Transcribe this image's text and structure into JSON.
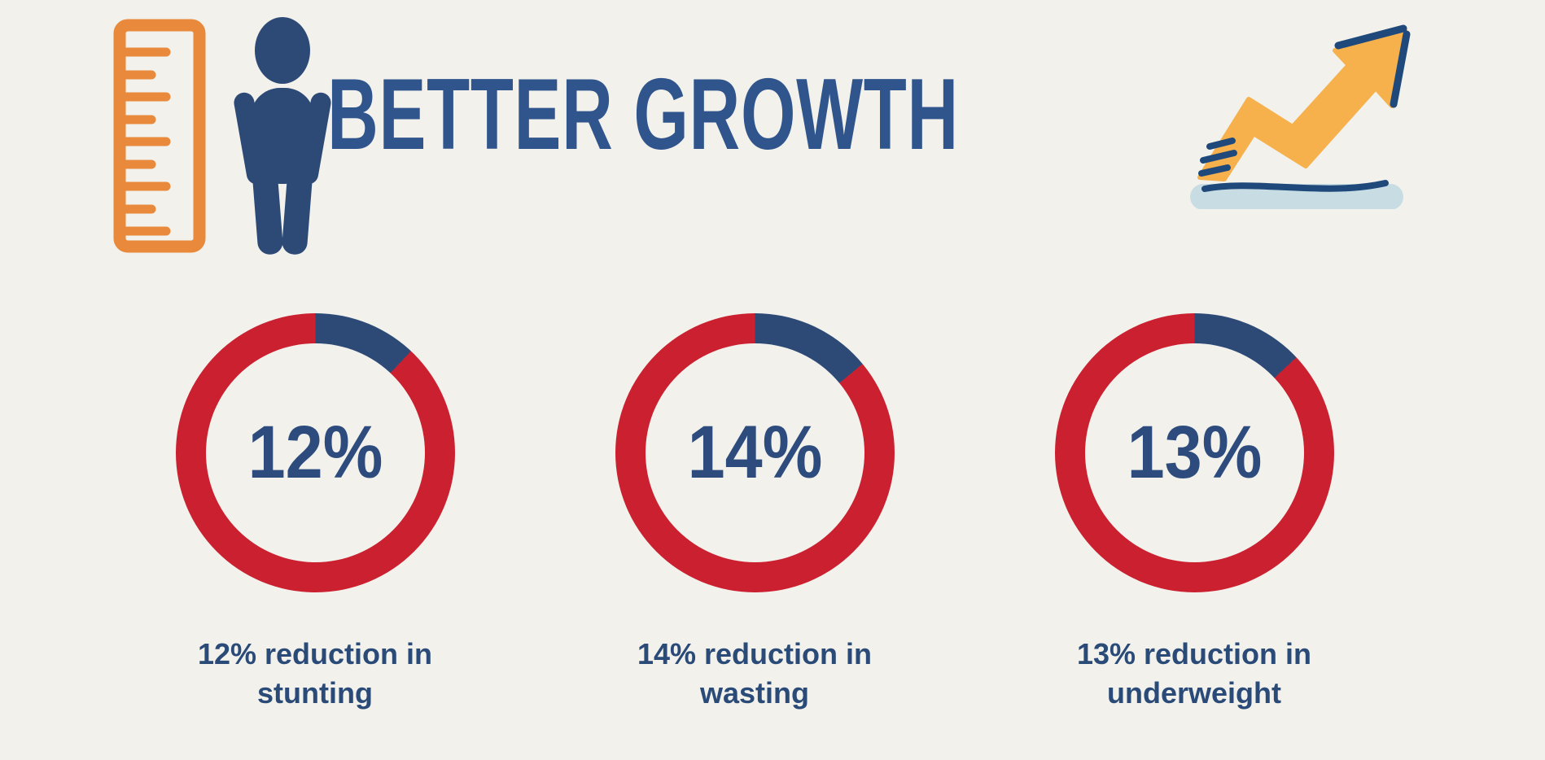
{
  "header": {
    "title": "BETTER GROWTH",
    "title_color": "#30548c",
    "left_icon": "ruler-and-person",
    "right_icon": "rising-growth-arrow"
  },
  "colors": {
    "background": "#f2f1ec",
    "red": "#cb2030",
    "navy": "#2d4a77",
    "orange": "#e8893c",
    "yellow": "#f6b04c",
    "light_blue": "#c8dde3",
    "arrow_accent_navy": "#1f497a",
    "caption_text": "#2a4a78"
  },
  "chart_data": {
    "type": "pie",
    "subtype": "donut",
    "title": "BETTER GROWTH",
    "units": "%",
    "start_angle": "12 o'clock",
    "direction": "clockwise",
    "legend": "none",
    "charts": [
      {
        "name": "stunting",
        "value": 12,
        "value_label": "12%",
        "caption_lines": [
          "12% reduction in",
          "stunting"
        ],
        "slices": [
          {
            "label": "reduction",
            "value": 12,
            "color": "#2d4a77"
          },
          {
            "label": "remainder",
            "value": 88,
            "color": "#cb2030"
          }
        ]
      },
      {
        "name": "wasting",
        "value": 14,
        "value_label": "14%",
        "caption_lines": [
          "14% reduction in",
          "wasting"
        ],
        "slices": [
          {
            "label": "reduction",
            "value": 14,
            "color": "#2d4a77"
          },
          {
            "label": "remainder",
            "value": 86,
            "color": "#cb2030"
          }
        ]
      },
      {
        "name": "underweight",
        "value": 13,
        "value_label": "13%",
        "caption_lines": [
          "13% reduction in",
          "underweight"
        ],
        "slices": [
          {
            "label": "reduction",
            "value": 13,
            "color": "#2d4a77"
          },
          {
            "label": "remainder",
            "value": 87,
            "color": "#cb2030"
          }
        ]
      }
    ]
  }
}
